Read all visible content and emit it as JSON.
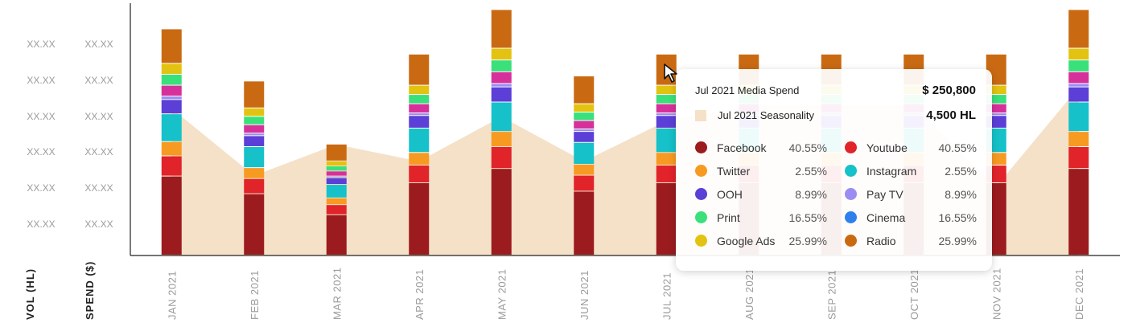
{
  "chart_data": {
    "type": "bar",
    "stacked": true,
    "categories": [
      "JAN 2021",
      "FEB 2021",
      "MAR 2021",
      "APR 2021",
      "MAY 2021",
      "JUN 2021",
      "JUL 2021",
      "AUG 2021",
      "SEP 2021",
      "OCT 2021",
      "NOV 2021",
      "DEC 2021"
    ],
    "ylabel_left": "VOL (HL)",
    "ylabel_right": "SPEND ($)",
    "y_tick_labels_left": [
      "XX.XX",
      "XX.XX",
      "XX.XX",
      "XX.XX",
      "XX.XX",
      "XX.XX"
    ],
    "y_tick_labels_right": [
      "XX.XX",
      "XX.XX",
      "XX.XX",
      "XX.XX",
      "XX.XX",
      "XX.XX"
    ],
    "ylim": [
      0,
      300
    ],
    "seasonality": {
      "color": "#f5e1c8",
      "values": [
        175,
        95,
        132,
        112,
        165,
        112,
        160,
        178,
        178,
        178,
        82,
        200
      ]
    },
    "series": [
      {
        "name": "Facebook",
        "color": "#9b1b1f",
        "values": [
          94,
          73,
          48,
          86,
          103,
          76,
          86,
          86,
          86,
          86,
          86,
          103
        ]
      },
      {
        "name": "Youtube",
        "color": "#e1232a",
        "values": [
          24,
          18,
          12,
          21,
          26,
          19,
          21,
          21,
          21,
          21,
          21,
          26
        ]
      },
      {
        "name": "Twitter",
        "color": "#f79a22",
        "values": [
          17,
          13,
          8,
          15,
          18,
          13,
          15,
          15,
          15,
          15,
          15,
          18
        ]
      },
      {
        "name": "Instagram",
        "color": "#16c1c9",
        "values": [
          33,
          25,
          16,
          29,
          35,
          26,
          29,
          29,
          29,
          29,
          29,
          35
        ]
      },
      {
        "name": "OOH",
        "color": "#5b3fd6",
        "values": [
          17,
          13,
          8,
          15,
          18,
          13,
          15,
          15,
          15,
          15,
          15,
          18
        ]
      },
      {
        "name": "Pay TV",
        "color": "#9a8cf2",
        "values": [
          4,
          3,
          2,
          3,
          4,
          3,
          3,
          3,
          3,
          3,
          3,
          4
        ]
      },
      {
        "name": "Print",
        "color": "#d6319a",
        "values": [
          13,
          10,
          6,
          11,
          14,
          10,
          11,
          11,
          11,
          11,
          11,
          14
        ]
      },
      {
        "name": "Cinema",
        "color": "#3ae07a",
        "values": [
          13,
          10,
          6,
          11,
          14,
          10,
          11,
          11,
          11,
          11,
          11,
          14
        ]
      },
      {
        "name": "Google Ads",
        "color": "#e3c312",
        "values": [
          13,
          10,
          6,
          11,
          14,
          10,
          11,
          11,
          11,
          11,
          11,
          14
        ]
      },
      {
        "name": "Radio",
        "color": "#c96a12",
        "values": [
          41,
          32,
          20,
          37,
          46,
          33,
          37,
          37,
          37,
          37,
          37,
          46
        ]
      }
    ]
  },
  "tooltip": {
    "spend_label": "Jul 2021 Media Spend",
    "spend_value": "$ 250,800",
    "seasonality_label": "Jul 2021 Seasonality",
    "seasonality_value": "4,500 HL",
    "legend": [
      {
        "name": "Facebook",
        "pct": "40.55%",
        "color": "#9b1b1f"
      },
      {
        "name": "Youtube",
        "pct": "40.55%",
        "color": "#e1232a"
      },
      {
        "name": "Twitter",
        "pct": "2.55%",
        "color": "#f79a22"
      },
      {
        "name": "Instagram",
        "pct": "2.55%",
        "color": "#16c1c9"
      },
      {
        "name": "OOH",
        "pct": "8.99%",
        "color": "#5b3fd6"
      },
      {
        "name": "Pay TV",
        "pct": "8.99%",
        "color": "#9a8cf2"
      },
      {
        "name": "Print",
        "pct": "16.55%",
        "color": "#3ae07a"
      },
      {
        "name": "Cinema",
        "pct": "16.55%",
        "color": "#2f80ed"
      },
      {
        "name": "Google Ads",
        "pct": "25.99%",
        "color": "#e3c312"
      },
      {
        "name": "Radio",
        "pct": "25.99%",
        "color": "#c96a12"
      }
    ]
  },
  "colors": {
    "axis": "#222222",
    "tick_text": "#9b9b9b"
  }
}
